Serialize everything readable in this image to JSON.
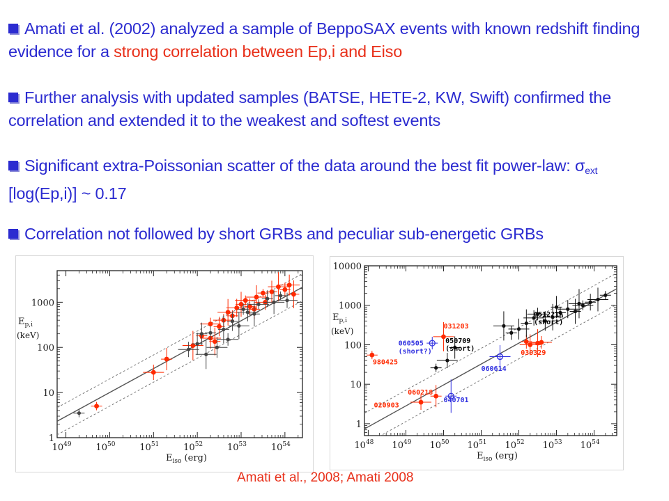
{
  "bullets": [
    {
      "pre": "Amati et al. (2002) analyzed a sample of BeppoSAX events with known redshift finding evidence for a ",
      "highlight": "strong correlation between Ep,i and Eiso"
    },
    {
      "text": "Further analysis with updated samples (BATSE, HETE-2, KW, Swift) confirmed the correlation and extended it to the weakest and softest events"
    },
    {
      "pre": "Significant extra-Poissonian scatter of the data around the best fit power-law: ",
      "sigma": "σ",
      "sub": "ext",
      "post": " [log(Ep,i)] ~ 0.17"
    },
    {
      "text": "Correlation not followed by short GRBs and peculiar sub-energetic GRBs"
    }
  ],
  "caption": "Amati et al., 2008; Amati 2008",
  "colors": {
    "text_blue": "#2b2bd0",
    "highlight_red": "#e8301a",
    "point_red": "#ff2a00",
    "outlier_blue": "#3030e0"
  },
  "chart_data": [
    {
      "type": "scatter",
      "log_x": true,
      "log_y": true,
      "xlim_exp": [
        48.8,
        54.4
      ],
      "ylim": [
        1,
        5000
      ],
      "x_ticks": [
        {
          "exp": 49,
          "base": "10",
          "sup": "49"
        },
        {
          "exp": 50,
          "base": "10",
          "sup": "50"
        },
        {
          "exp": 51,
          "base": "10",
          "sup": "51"
        },
        {
          "exp": 52,
          "base": "10",
          "sup": "52"
        },
        {
          "exp": 53,
          "base": "10",
          "sup": "53"
        },
        {
          "exp": 54,
          "base": "10",
          "sup": "54"
        }
      ],
      "y_ticks": [
        1,
        10,
        100,
        1000
      ],
      "y_tick_labels": [
        "1",
        "10",
        "100",
        "1000"
      ],
      "ylabel_lines": [
        "E",
        "p,i",
        "(keV)"
      ],
      "xlabel": {
        "main": "E",
        "sub": "iso",
        "unit": "(erg)"
      },
      "fit_line": {
        "slope": 0.53,
        "intercept_at_52": 115
      },
      "scatter_band_factor": 2.0,
      "series": [
        {
          "color": "red",
          "points": [
            [
              49.7,
              5
            ],
            [
              51.0,
              28
            ],
            [
              51.3,
              55
            ],
            [
              51.9,
              110
            ],
            [
              52.1,
              180
            ],
            [
              52.3,
              160
            ],
            [
              52.4,
              135
            ],
            [
              52.3,
              330
            ],
            [
              52.5,
              290
            ],
            [
              52.7,
              600
            ],
            [
              52.8,
              500
            ],
            [
              52.9,
              750
            ],
            [
              53.0,
              900
            ],
            [
              53.1,
              1100
            ],
            [
              53.2,
              800
            ],
            [
              53.35,
              1300
            ],
            [
              53.5,
              1600
            ],
            [
              53.55,
              1000
            ],
            [
              53.7,
              1700
            ],
            [
              53.85,
              2200
            ],
            [
              54.0,
              1900
            ],
            [
              54.1,
              2400
            ],
            [
              54.2,
              1500
            ],
            [
              52.6,
              400
            ],
            [
              53.3,
              700
            ]
          ]
        },
        {
          "color": "gray",
          "points": [
            [
              49.3,
              3.5
            ],
            [
              51.8,
              90
            ],
            [
              52.0,
              120
            ],
            [
              52.2,
              70
            ],
            [
              52.3,
              210
            ],
            [
              52.45,
              100
            ],
            [
              52.6,
              250
            ],
            [
              52.7,
              150
            ],
            [
              52.8,
              380
            ],
            [
              52.95,
              300
            ],
            [
              53.05,
              700
            ],
            [
              53.15,
              600
            ],
            [
              53.3,
              550
            ],
            [
              53.4,
              900
            ],
            [
              53.6,
              1200
            ],
            [
              53.75,
              1000
            ],
            [
              53.9,
              1400
            ],
            [
              54.05,
              1100
            ],
            [
              52.1,
              200
            ]
          ]
        }
      ]
    },
    {
      "type": "scatter",
      "log_x": true,
      "log_y": true,
      "xlim_exp": [
        47.9,
        54.6
      ],
      "ylim": [
        0.5,
        10000
      ],
      "x_ticks": [
        {
          "exp": 48,
          "base": "10",
          "sup": "48"
        },
        {
          "exp": 49,
          "base": "10",
          "sup": "49"
        },
        {
          "exp": 50,
          "base": "10",
          "sup": "50"
        },
        {
          "exp": 51,
          "base": "10",
          "sup": "51"
        },
        {
          "exp": 52,
          "base": "10",
          "sup": "52"
        },
        {
          "exp": 53,
          "base": "10",
          "sup": "53"
        },
        {
          "exp": 54,
          "base": "10",
          "sup": "54"
        }
      ],
      "y_ticks": [
        1,
        10,
        100,
        1000,
        10000
      ],
      "y_tick_labels": [
        "1",
        "10",
        "100",
        "1000",
        "10000"
      ],
      "ylabel_lines": [
        "E",
        "p,i",
        "(keV)"
      ],
      "xlabel": {
        "main": "E",
        "sub": "iso",
        "unit": "(erg)"
      },
      "fit_line": {
        "slope": 0.53,
        "intercept_at_52": 110
      },
      "scatter_band_factor": 2.5,
      "annotations": [
        {
          "text": "051221A",
          "x": 52.4,
          "y": 520,
          "color": "#000000"
        },
        {
          "text": "(short)",
          "x": 52.4,
          "y": 330,
          "color": "#000000"
        },
        {
          "text": "031203",
          "x": 50.0,
          "y": 260,
          "color": "#ff2a00"
        },
        {
          "text": "060505",
          "x": 48.8,
          "y": 95,
          "color": "#3030e0"
        },
        {
          "text": "(short?)",
          "x": 48.8,
          "y": 60,
          "color": "#3030e0"
        },
        {
          "text": "050709",
          "x": 50.05,
          "y": 110,
          "color": "#000000"
        },
        {
          "text": "(short)",
          "x": 50.05,
          "y": 70,
          "color": "#000000"
        },
        {
          "text": "980425",
          "x": 48.12,
          "y": 32,
          "color": "#ff2a00"
        },
        {
          "text": "030329",
          "x": 52.05,
          "y": 55,
          "color": "#ff2a00"
        },
        {
          "text": "060614",
          "x": 51.0,
          "y": 22,
          "color": "#3030e0"
        },
        {
          "text": "060218",
          "x": 49.05,
          "y": 5.5,
          "color": "#ff2a00"
        },
        {
          "text": "040701",
          "x": 50.0,
          "y": 3.5,
          "color": "#3030e0"
        },
        {
          "text": "020903",
          "x": 48.15,
          "y": 2.6,
          "color": "#ff2a00"
        }
      ],
      "series": [
        {
          "color": "red",
          "points": [
            [
              48.1,
              55
            ],
            [
              49.4,
              3.5
            ],
            [
              49.8,
              5
            ],
            [
              50.0,
              160
            ],
            [
              52.2,
              120
            ],
            [
              52.3,
              100
            ],
            [
              52.5,
              110
            ],
            [
              52.6,
              115
            ]
          ]
        },
        {
          "color": "blue",
          "points": [
            [
              49.7,
              110
            ],
            [
              51.5,
              50
            ],
            [
              50.2,
              5
            ]
          ]
        },
        {
          "color": "black",
          "points": [
            [
              49.8,
              26
            ],
            [
              50.1,
              40
            ],
            [
              50.3,
              85
            ],
            [
              51.6,
              300
            ],
            [
              51.8,
              200
            ],
            [
              52.0,
              250
            ],
            [
              52.2,
              350
            ],
            [
              52.5,
              600
            ],
            [
              52.7,
              400
            ],
            [
              52.9,
              500
            ],
            [
              53.1,
              650
            ],
            [
              53.3,
              800
            ],
            [
              53.5,
              700
            ],
            [
              53.7,
              1000
            ],
            [
              53.9,
              1200
            ],
            [
              54.1,
              1400
            ],
            [
              54.3,
              1800
            ],
            [
              52.4,
              480
            ],
            [
              53.0,
              900
            ],
            [
              53.6,
              1100
            ]
          ]
        }
      ]
    }
  ]
}
